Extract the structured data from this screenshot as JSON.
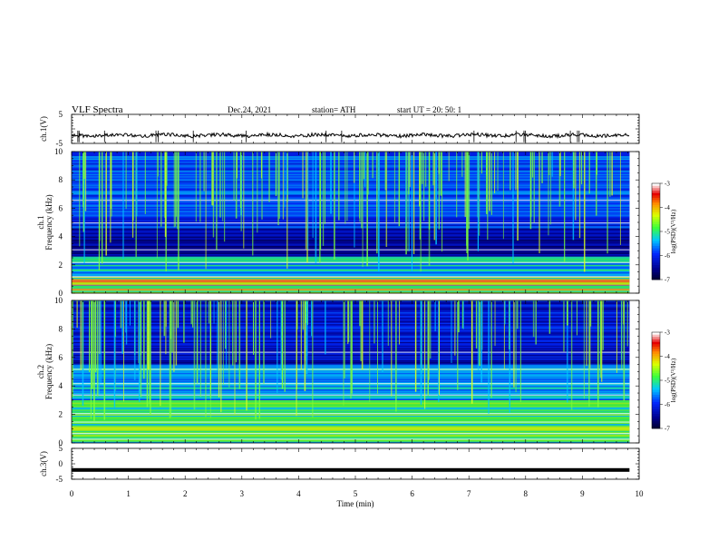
{
  "header": {
    "title": "VLF  Spectra",
    "date": "Dec.24, 2021",
    "station": "station= ATH",
    "start_ut": "start  UT  =    20: 50: 1"
  },
  "chart_data": {
    "type": "heatmap",
    "x": {
      "label": "Time  (min)",
      "range": [
        0,
        10
      ],
      "ticks": [
        0,
        1,
        2,
        3,
        4,
        5,
        6,
        7,
        8,
        9,
        10
      ],
      "data_end": 9.83
    },
    "panels": [
      {
        "kind": "line",
        "ylabel": "ch.1(V)",
        "yrange": [
          -5,
          5
        ],
        "yticks": [
          5,
          -5
        ],
        "baseline": -2.2
      },
      {
        "kind": "spectrogram",
        "ylabel_channel": "ch.1",
        "ylabel": "Frequency  (kHz)",
        "yrange": [
          0,
          10
        ],
        "yticks": [
          0,
          2,
          4,
          6,
          8,
          10
        ],
        "colorbar": {
          "label": "log(PSD)(V²/Hz)",
          "range": [
            -7,
            -3
          ],
          "ticks": [
            -3,
            -4,
            -5,
            -6,
            -7
          ]
        }
      },
      {
        "kind": "spectrogram",
        "ylabel_channel": "ch.2",
        "ylabel": "Frequency  (kHz)",
        "yrange": [
          0,
          10
        ],
        "yticks": [
          0,
          2,
          4,
          6,
          8,
          10
        ],
        "colorbar": {
          "label": "log(PSD)(V²/Hz)",
          "range": [
            -7,
            -3
          ],
          "ticks": [
            -3,
            -4,
            -5,
            -6,
            -7
          ]
        }
      },
      {
        "kind": "line",
        "ylabel": "ch.3(V)",
        "yrange": [
          -5,
          5
        ],
        "yticks": [
          5,
          0,
          -5
        ],
        "baseline": -2.0
      }
    ]
  }
}
